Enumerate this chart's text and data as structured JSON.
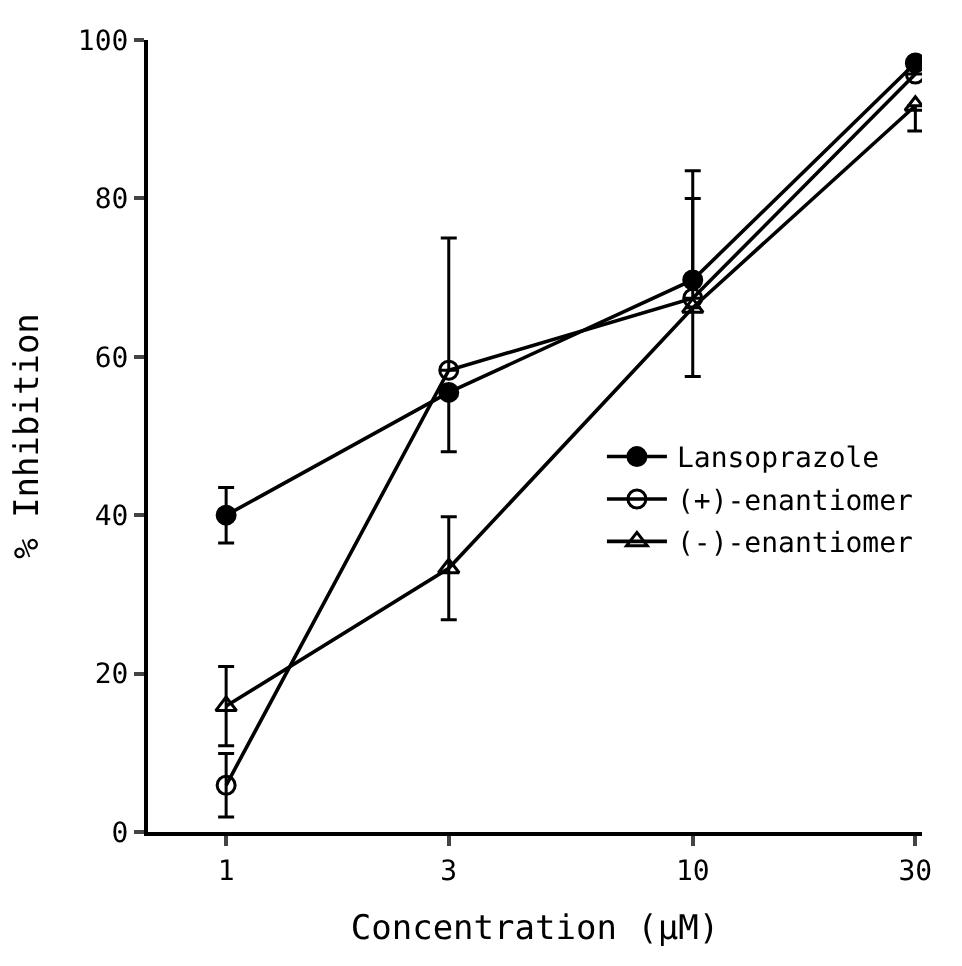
{
  "chart_data": {
    "type": "line",
    "xlabel": "Concentration (μM)",
    "ylabel": "% Inhibition",
    "x": [
      1,
      3,
      10,
      30
    ],
    "log": "x",
    "xlim": [
      0.68,
      31
    ],
    "xticks": [
      1,
      3,
      10,
      30
    ],
    "ylim": [
      0,
      100
    ],
    "yticks": [
      0,
      20,
      40,
      60,
      80,
      100
    ],
    "legend": "right",
    "series": [
      {
        "name": "Lansoprazole",
        "color": "#000000",
        "marker": "circle",
        "values": [
          40,
          55.5,
          69.7,
          97.1
        ],
        "errors": [
          3.5,
          [
            48,
            55.5
          ],
          [
            69.7,
            80
          ],
          null
        ]
      },
      {
        "name": "(+)-enantiomer",
        "color": "#000000",
        "marker": "circle-open",
        "values": [
          5.9,
          58.3,
          67.4,
          95.7
        ],
        "errors": [
          4,
          [
            58.3,
            75
          ],
          [
            67.4,
            83.5
          ],
          null
        ]
      },
      {
        "name": "(-)-enantiomer",
        "color": "#000000",
        "marker": "triangle-open",
        "values": [
          15.9,
          33.3,
          66.2,
          91.7
        ],
        "errors": [
          5,
          6.5,
          [
            57.5,
            66.2
          ],
          [
            88.5,
            91.7
          ]
        ]
      }
    ]
  }
}
